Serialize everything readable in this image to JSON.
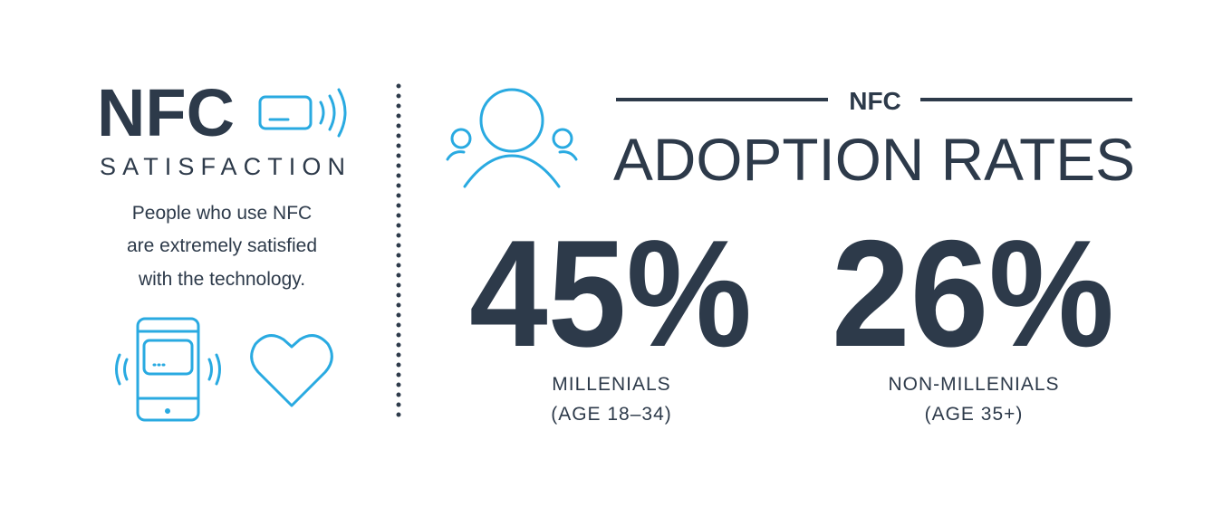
{
  "left": {
    "title": "NFC",
    "subtitle": "SATISFACTION",
    "description": [
      "People who use NFC",
      "are extremely satisfied",
      "with the technology."
    ]
  },
  "right": {
    "kicker": "NFC",
    "title": "ADOPTION RATES",
    "stats": [
      {
        "value": "45%",
        "label": [
          "MILLENIALS",
          "(AGE 18–34)"
        ]
      },
      {
        "value": "26%",
        "label": [
          "NON-MILLENIALS",
          "(AGE 35+)"
        ]
      }
    ]
  }
}
